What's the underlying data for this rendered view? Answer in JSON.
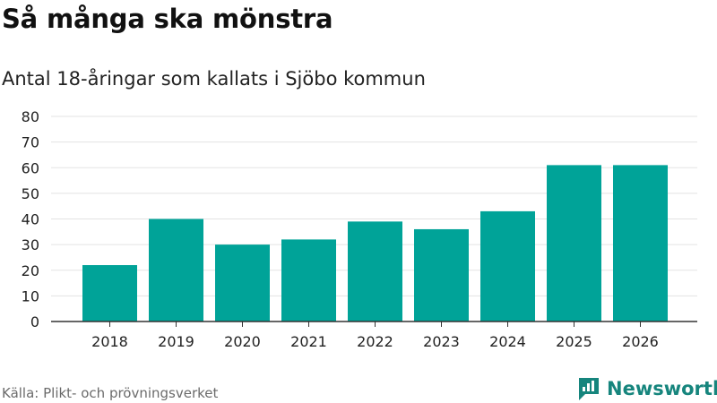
{
  "header": {
    "title": "Så många ska mönstra"
  },
  "chart_data": {
    "type": "bar",
    "title": "Så många ska mönstra",
    "subtitle": "Antal 18-åringar som kallats i Sjöbo kommun",
    "xlabel": "",
    "ylabel": "",
    "categories": [
      "2018",
      "2019",
      "2020",
      "2021",
      "2022",
      "2023",
      "2024",
      "2025",
      "2026"
    ],
    "values": [
      22,
      40,
      30,
      32,
      39,
      36,
      43,
      61,
      61
    ],
    "ylim": [
      0,
      80
    ],
    "yticks": [
      0,
      10,
      20,
      30,
      40,
      50,
      60,
      70,
      80
    ],
    "grid": true,
    "bar_color": "#00a398",
    "grid_color": "#e3e3e3",
    "axis_color": "#333333"
  },
  "footer": {
    "source": "Källa: Plikt- och prövningsverket",
    "brand": "Newsworthy",
    "brand_color": "#16857d",
    "logo_icon": "bar-chart-flag-icon"
  }
}
